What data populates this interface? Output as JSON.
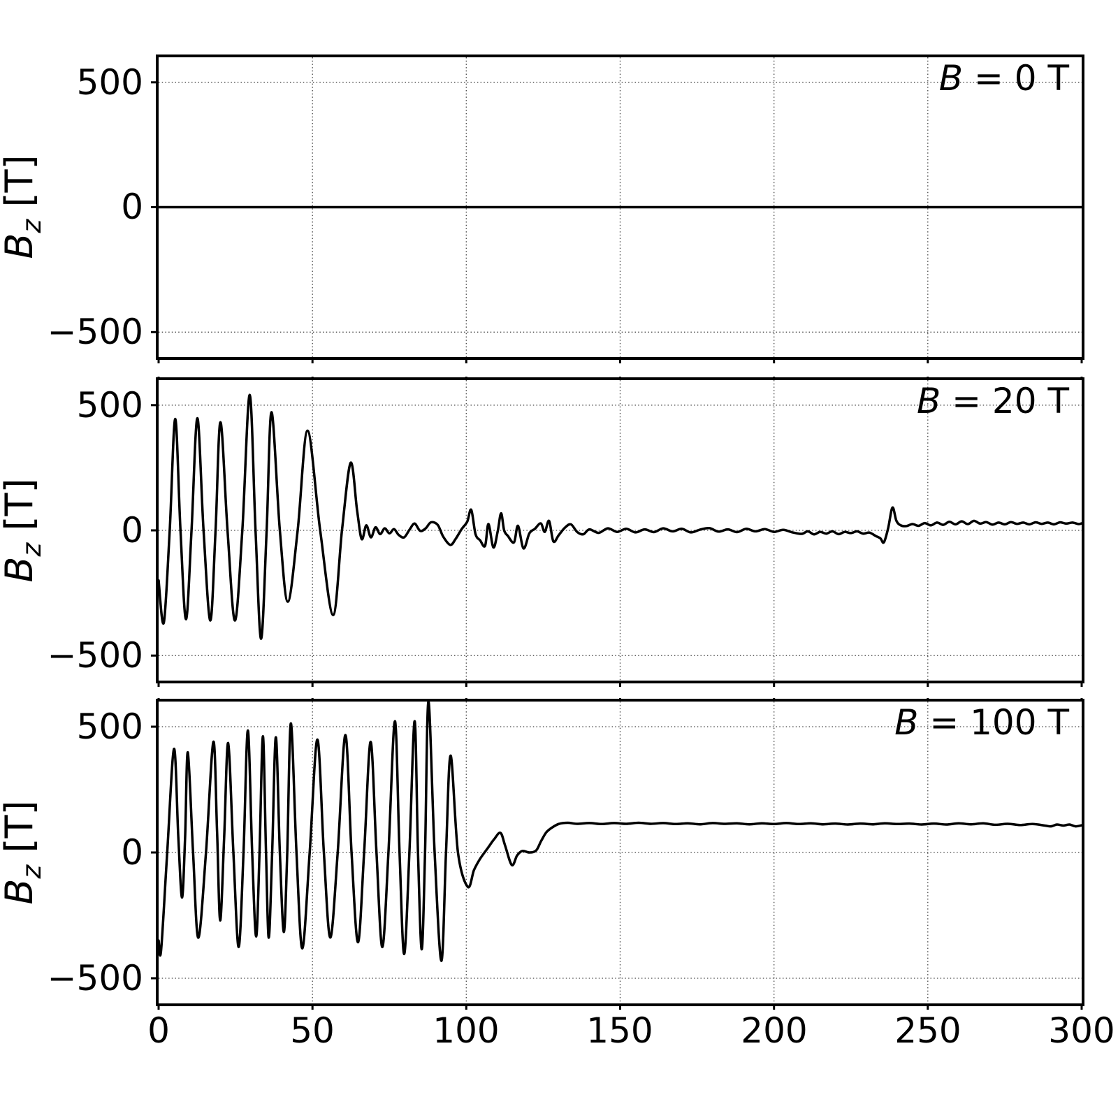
{
  "figure": {
    "background": "#ffffff",
    "line_color": "#000000",
    "grid_color": "#444444"
  },
  "ylabel": {
    "sym": "B",
    "sub": "z",
    "unit": " [T]"
  },
  "ytick_labels": [
    "500",
    "0",
    "−500"
  ],
  "xtick_labels": [
    "0",
    "50",
    "100",
    "150",
    "200",
    "250",
    "300"
  ],
  "panels": [
    {
      "annotation": {
        "sym": "B",
        "rest": " = 0 T"
      }
    },
    {
      "annotation": {
        "sym": "B",
        "rest": " = 20 T"
      }
    },
    {
      "annotation": {
        "sym": "B",
        "rest": " = 100 T"
      }
    }
  ],
  "chart_data": [
    {
      "type": "line",
      "label": "B = 0 T",
      "ylabel": "B_z [T]",
      "xlabel": "",
      "xlim": [
        0,
        300
      ],
      "ylim": [
        -600,
        600
      ],
      "xticks": [
        0,
        50,
        100,
        150,
        200,
        250,
        300
      ],
      "yticks": [
        500,
        0,
        -500
      ],
      "grid": true,
      "top_ticks": false,
      "points": [
        [
          0,
          0
        ],
        [
          300,
          0
        ]
      ]
    },
    {
      "type": "line",
      "label": "B = 20 T",
      "ylabel": "B_z [T]",
      "xlabel": "",
      "xlim": [
        0,
        300
      ],
      "ylim": [
        -600,
        600
      ],
      "xticks": [
        0,
        50,
        100,
        150,
        200,
        250,
        300
      ],
      "yticks": [
        500,
        0,
        -500
      ],
      "grid": true,
      "top_ticks": true,
      "points": [
        [
          0,
          -200
        ],
        [
          1.7,
          -368
        ],
        [
          3.6,
          0
        ],
        [
          5.4,
          445
        ],
        [
          7.1,
          0
        ],
        [
          8.9,
          -355
        ],
        [
          10.7,
          0
        ],
        [
          12.6,
          448
        ],
        [
          14.6,
          0
        ],
        [
          16.8,
          -360
        ],
        [
          18.5,
          0
        ],
        [
          20.1,
          432
        ],
        [
          22.4,
          0
        ],
        [
          24.8,
          -360
        ],
        [
          27.2,
          0
        ],
        [
          29.6,
          541
        ],
        [
          31.5,
          0
        ],
        [
          33.3,
          -433
        ],
        [
          35.1,
          0
        ],
        [
          36.7,
          472
        ],
        [
          39.4,
          0
        ],
        [
          42,
          -285
        ],
        [
          45.2,
          0
        ],
        [
          48.4,
          398
        ],
        [
          52.5,
          0
        ],
        [
          56.7,
          -338
        ],
        [
          59.6,
          0
        ],
        [
          62.4,
          270
        ],
        [
          64.5,
          80
        ],
        [
          66,
          -35
        ],
        [
          67.5,
          20
        ],
        [
          69,
          -28
        ],
        [
          70.5,
          12
        ],
        [
          72,
          -15
        ],
        [
          73.5,
          8
        ],
        [
          75,
          -12
        ],
        [
          76.5,
          5
        ],
        [
          78,
          -18
        ],
        [
          79.8,
          -28
        ],
        [
          81.5,
          2
        ],
        [
          83.2,
          27
        ],
        [
          85,
          -2
        ],
        [
          86.8,
          8
        ],
        [
          88.5,
          32
        ],
        [
          90.7,
          22
        ],
        [
          92.5,
          -25
        ],
        [
          94.8,
          -58
        ],
        [
          96.5,
          -35
        ],
        [
          98.5,
          5
        ],
        [
          100.3,
          35
        ],
        [
          101.6,
          82
        ],
        [
          103,
          -15
        ],
        [
          104.5,
          -40
        ],
        [
          106.1,
          -62
        ],
        [
          107.2,
          25
        ],
        [
          108.8,
          -68
        ],
        [
          110.2,
          -5
        ],
        [
          111.3,
          68
        ],
        [
          112.3,
          0
        ],
        [
          113.5,
          -22
        ],
        [
          115.5,
          -48
        ],
        [
          116.8,
          18
        ],
        [
          118.6,
          -72
        ],
        [
          120.5,
          -12
        ],
        [
          122.3,
          6
        ],
        [
          124.2,
          28
        ],
        [
          125.5,
          -6
        ],
        [
          126.9,
          38
        ],
        [
          128.3,
          -44
        ],
        [
          130,
          -20
        ],
        [
          132,
          10
        ],
        [
          134,
          24
        ],
        [
          136,
          -6
        ],
        [
          138,
          -16
        ],
        [
          140,
          4
        ],
        [
          143,
          -10
        ],
        [
          146,
          8
        ],
        [
          149,
          -6
        ],
        [
          152,
          6
        ],
        [
          155,
          -8
        ],
        [
          158,
          4
        ],
        [
          161,
          -7
        ],
        [
          164,
          8
        ],
        [
          167,
          -4
        ],
        [
          170,
          6
        ],
        [
          173,
          -8
        ],
        [
          176,
          3
        ],
        [
          179,
          9
        ],
        [
          182,
          -5
        ],
        [
          185,
          4
        ],
        [
          188,
          -7
        ],
        [
          191,
          6
        ],
        [
          194,
          -4
        ],
        [
          197,
          5
        ],
        [
          200,
          -6
        ],
        [
          203,
          2
        ],
        [
          206,
          -8
        ],
        [
          209,
          -14
        ],
        [
          211,
          -4
        ],
        [
          213,
          -16
        ],
        [
          215,
          -6
        ],
        [
          217,
          -13
        ],
        [
          219,
          -4
        ],
        [
          221,
          -15
        ],
        [
          223,
          -6
        ],
        [
          225,
          -11
        ],
        [
          227,
          -4
        ],
        [
          229,
          -13
        ],
        [
          231,
          -9
        ],
        [
          233,
          -22
        ],
        [
          234.6,
          -32
        ],
        [
          235.7,
          -48
        ],
        [
          237.1,
          8
        ],
        [
          238.5,
          91
        ],
        [
          239.8,
          38
        ],
        [
          241.2,
          20
        ],
        [
          243,
          17
        ],
        [
          245,
          25
        ],
        [
          247,
          18
        ],
        [
          249,
          29
        ],
        [
          251,
          20
        ],
        [
          253,
          31
        ],
        [
          255,
          22
        ],
        [
          257,
          34
        ],
        [
          259,
          24
        ],
        [
          261,
          36
        ],
        [
          263,
          25
        ],
        [
          265,
          38
        ],
        [
          267,
          27
        ],
        [
          269,
          33
        ],
        [
          271,
          23
        ],
        [
          273,
          31
        ],
        [
          275,
          24
        ],
        [
          277,
          33
        ],
        [
          279,
          26
        ],
        [
          281,
          31
        ],
        [
          283,
          24
        ],
        [
          285,
          32
        ],
        [
          287,
          26
        ],
        [
          289,
          31
        ],
        [
          291,
          24
        ],
        [
          293,
          32
        ],
        [
          295,
          27
        ],
        [
          297,
          31
        ],
        [
          299,
          25
        ],
        [
          300,
          28
        ]
      ]
    },
    {
      "type": "line",
      "label": "B = 100 T",
      "ylabel": "B_z [T]",
      "xlabel": "",
      "xlim": [
        0,
        300
      ],
      "ylim": [
        -600,
        600
      ],
      "xticks": [
        0,
        50,
        100,
        150,
        200,
        250,
        300
      ],
      "yticks": [
        500,
        0,
        -500
      ],
      "grid": true,
      "top_ticks": true,
      "points": [
        [
          0,
          -350
        ],
        [
          0.8,
          -390
        ],
        [
          2.8,
          0
        ],
        [
          5,
          412
        ],
        [
          6.4,
          60
        ],
        [
          7.6,
          -179
        ],
        [
          8.6,
          60
        ],
        [
          9.5,
          398
        ],
        [
          11.2,
          0
        ],
        [
          12.9,
          -339
        ],
        [
          15.4,
          0
        ],
        [
          17.8,
          440
        ],
        [
          19,
          80
        ],
        [
          20,
          -270
        ],
        [
          21.3,
          60
        ],
        [
          22.6,
          435
        ],
        [
          24.3,
          0
        ],
        [
          26,
          -376
        ],
        [
          27.6,
          0
        ],
        [
          29,
          485
        ],
        [
          30.4,
          0
        ],
        [
          31.7,
          -334
        ],
        [
          32.8,
          0
        ],
        [
          33.9,
          462
        ],
        [
          34.9,
          0
        ],
        [
          35.8,
          -339
        ],
        [
          36.9,
          0
        ],
        [
          38.1,
          458
        ],
        [
          39.4,
          0
        ],
        [
          40.7,
          -316
        ],
        [
          41.8,
          0
        ],
        [
          43,
          513
        ],
        [
          44.8,
          0
        ],
        [
          46.7,
          -381
        ],
        [
          49.1,
          0
        ],
        [
          51.6,
          449
        ],
        [
          53.7,
          0
        ],
        [
          55.8,
          -338
        ],
        [
          58.2,
          0
        ],
        [
          60.7,
          467
        ],
        [
          62.7,
          0
        ],
        [
          64.8,
          -357
        ],
        [
          66.8,
          0
        ],
        [
          68.9,
          440
        ],
        [
          70.8,
          0
        ],
        [
          72.7,
          -376
        ],
        [
          74.7,
          0
        ],
        [
          76.8,
          522
        ],
        [
          78.3,
          0
        ],
        [
          79.8,
          -404
        ],
        [
          81.5,
          0
        ],
        [
          83.2,
          522
        ],
        [
          84.3,
          0
        ],
        [
          85.5,
          -385
        ],
        [
          86.6,
          0
        ],
        [
          87.7,
          600
        ],
        [
          89.7,
          0
        ],
        [
          91.9,
          -431
        ],
        [
          93.4,
          0
        ],
        [
          94.9,
          385
        ],
        [
          97.3,
          0
        ],
        [
          100.5,
          -137
        ],
        [
          102.5,
          -70
        ],
        [
          104.5,
          -25
        ],
        [
          107,
          18
        ],
        [
          109,
          52
        ],
        [
          111.1,
          78
        ],
        [
          112.6,
          28
        ],
        [
          114.8,
          -50
        ],
        [
          116.5,
          -12
        ],
        [
          118.2,
          6
        ],
        [
          120.5,
          0
        ],
        [
          122.7,
          8
        ],
        [
          124.3,
          45
        ],
        [
          126,
          80
        ],
        [
          128,
          100
        ],
        [
          130.2,
          114
        ],
        [
          133,
          118
        ],
        [
          136,
          114
        ],
        [
          140,
          117
        ],
        [
          144,
          113
        ],
        [
          148,
          117
        ],
        [
          152,
          114
        ],
        [
          156,
          118
        ],
        [
          160,
          114
        ],
        [
          164,
          117
        ],
        [
          168,
          113
        ],
        [
          172,
          116
        ],
        [
          176,
          112
        ],
        [
          180,
          117
        ],
        [
          184,
          114
        ],
        [
          188,
          116
        ],
        [
          192,
          112
        ],
        [
          196,
          116
        ],
        [
          200,
          113
        ],
        [
          204,
          117
        ],
        [
          208,
          113
        ],
        [
          212,
          116
        ],
        [
          216,
          112
        ],
        [
          220,
          115
        ],
        [
          224,
          111
        ],
        [
          228,
          115
        ],
        [
          232,
          112
        ],
        [
          236,
          116
        ],
        [
          240,
          113
        ],
        [
          244,
          115
        ],
        [
          248,
          111
        ],
        [
          252,
          115
        ],
        [
          256,
          111
        ],
        [
          260,
          116
        ],
        [
          264,
          112
        ],
        [
          268,
          116
        ],
        [
          272,
          110
        ],
        [
          276,
          114
        ],
        [
          280,
          109
        ],
        [
          284,
          113
        ],
        [
          288,
          107
        ],
        [
          290,
          104
        ],
        [
          292,
          111
        ],
        [
          294,
          107
        ],
        [
          296,
          111
        ],
        [
          298,
          104
        ],
        [
          300,
          108
        ]
      ]
    }
  ]
}
